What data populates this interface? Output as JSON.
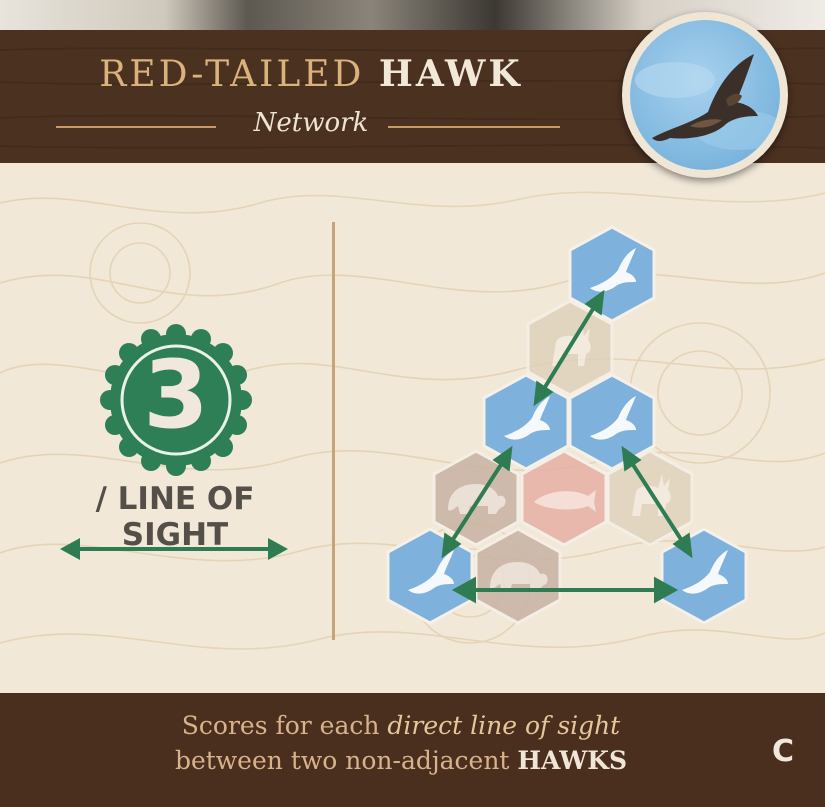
{
  "card": {
    "title_prefix": "RED-TAILED",
    "title_animal": "HAWK",
    "subtitle": "Network",
    "badge_icon": "hawk-icon",
    "points": "3",
    "rule_label": "/ LINE OF SIGHT",
    "footer_line1_plain": "Scores for each ",
    "footer_line1_italic": "direct line of sight",
    "footer_line2_plain": "between two non-adjacent ",
    "footer_line2_bold": "HAWKS",
    "card_letter": "C"
  },
  "colors": {
    "header_wood": "#4b3120",
    "title_gold": "#d9b27c",
    "hawk_blue": "#7eb1dc",
    "seal_green": "#2e7f56",
    "arrow_green": "#2f7c52",
    "bear_tile": "#c9b3a3",
    "salmon_tile": "#e7b0a6",
    "elk_tile": "#e0d3be",
    "faded_tile": "#ddcfb8"
  },
  "diagram": {
    "tiles": [
      {
        "animal": "hawk-icon",
        "type": "hawk"
      },
      {
        "animal": "elk-icon",
        "type": "faded"
      },
      {
        "animal": "hawk-icon",
        "type": "hawk"
      },
      {
        "animal": "hawk-icon",
        "type": "hawk"
      },
      {
        "animal": "bear-icon",
        "type": "bear"
      },
      {
        "animal": "salmon-icon",
        "type": "salmon"
      },
      {
        "animal": "elk-icon",
        "type": "elk"
      },
      {
        "animal": "hawk-icon",
        "type": "hawk"
      },
      {
        "animal": "bear-icon",
        "type": "bear"
      },
      {
        "animal": "hawk-icon",
        "type": "hawk"
      }
    ],
    "sight_lines": 4
  }
}
